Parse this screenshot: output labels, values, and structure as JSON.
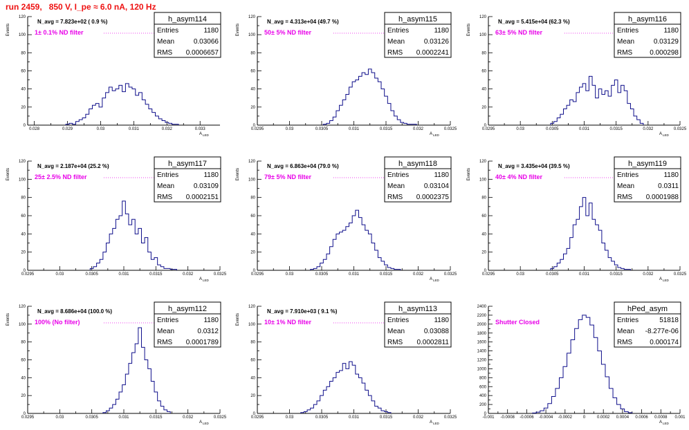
{
  "page_title": "run 2459,   850 V, I_pe ≈ 6.0 nA, 120 Hz",
  "colors": {
    "title": "#ee1111",
    "annotation": "#e800e8",
    "histogram": "#0d0d8a"
  },
  "chart_data": [
    {
      "type": "histogram",
      "name": "h_asym114",
      "stats": {
        "entries": "1180",
        "mean": "0.03066",
        "rms": "0.0006657"
      },
      "navg": "N_avg = 7.823e+02 ( 0.9 %)",
      "annotation": "1± 0.1% ND filter",
      "xlabel": "A_LED",
      "ylabel": "Events",
      "xlim": [
        0.0278,
        0.0336
      ],
      "ylim": [
        0,
        120
      ],
      "xticks": [
        "0.028",
        "0.029",
        "0.03",
        "0.031",
        "0.032",
        "0.033"
      ],
      "xtick_values": [
        0.028,
        0.029,
        0.03,
        0.031,
        0.032,
        0.033
      ],
      "yticks": [
        "0",
        "20",
        "40",
        "60",
        "80",
        "100",
        "120"
      ],
      "ytick_values": [
        0,
        20,
        40,
        60,
        80,
        100,
        120
      ],
      "bins": {
        "x": [
          0.029,
          0.0291,
          0.0292,
          0.0293,
          0.0294,
          0.0295,
          0.0296,
          0.0297,
          0.0298,
          0.0299,
          0.03,
          0.0301,
          0.0302,
          0.0303,
          0.0304,
          0.0305,
          0.0306,
          0.0307,
          0.0308,
          0.0309,
          0.031,
          0.0311,
          0.0312,
          0.0313,
          0.0314,
          0.0315,
          0.0316,
          0.0317,
          0.0318,
          0.0319,
          0.032,
          0.0321,
          0.0322,
          0.0323
        ],
        "y": [
          1,
          2,
          1,
          4,
          6,
          8,
          12,
          18,
          22,
          24,
          20,
          30,
          36,
          42,
          38,
          40,
          44,
          37,
          46,
          42,
          40,
          33,
          36,
          28,
          23,
          18,
          14,
          10,
          7,
          5,
          3,
          2,
          1,
          1
        ]
      }
    },
    {
      "type": "histogram",
      "name": "h_asym115",
      "stats": {
        "entries": "1180",
        "mean": "0.03126",
        "rms": "0.0002241"
      },
      "navg": "N_avg = 4.313e+04 (49.7 %)",
      "annotation": "50± 5% ND filter",
      "xlabel": "A_LED",
      "ylabel": "Events",
      "xlim": [
        0.0295,
        0.0325
      ],
      "ylim": [
        0,
        120
      ],
      "xticks": [
        "0.0295",
        "0.03",
        "0.0305",
        "0.031",
        "0.0315",
        "0.032",
        "0.0325"
      ],
      "xtick_values": [
        0.0295,
        0.03,
        0.0305,
        0.031,
        0.0315,
        0.032,
        0.0325
      ],
      "yticks": [
        "0",
        "20",
        "40",
        "60",
        "80",
        "100",
        "120"
      ],
      "ytick_values": [
        0,
        20,
        40,
        60,
        80,
        100,
        120
      ],
      "bins": {
        "x": [
          0.03055,
          0.0306,
          0.03065,
          0.0307,
          0.03075,
          0.0308,
          0.03085,
          0.0309,
          0.03095,
          0.031,
          0.03105,
          0.0311,
          0.03115,
          0.0312,
          0.03125,
          0.0313,
          0.03135,
          0.0314,
          0.03145,
          0.0315,
          0.03155,
          0.0316,
          0.03165,
          0.0317,
          0.03175,
          0.0318,
          0.03185,
          0.0319,
          0.03195
        ],
        "y": [
          1,
          2,
          5,
          9,
          16,
          22,
          28,
          34,
          42,
          48,
          50,
          54,
          58,
          56,
          62,
          58,
          52,
          48,
          40,
          32,
          24,
          16,
          10,
          6,
          3,
          2,
          1,
          1,
          1
        ]
      }
    },
    {
      "type": "histogram",
      "name": "h_asym116",
      "stats": {
        "entries": "1180",
        "mean": "0.03129",
        "rms": "0.000298"
      },
      "navg": "N_avg = 5.415e+04 (62.3 %)",
      "annotation": "63± 5% ND filter",
      "xlabel": "A_LED",
      "ylabel": "Events",
      "xlim": [
        0.0295,
        0.0325
      ],
      "ylim": [
        0,
        120
      ],
      "xticks": [
        "0.0295",
        "0.03",
        "0.0305",
        "0.031",
        "0.0315",
        "0.032",
        "0.0325"
      ],
      "xtick_values": [
        0.0295,
        0.03,
        0.0305,
        0.031,
        0.0315,
        0.032,
        0.0325
      ],
      "yticks": [
        "0",
        "20",
        "40",
        "60",
        "80",
        "100",
        "120"
      ],
      "ytick_values": [
        0,
        20,
        40,
        60,
        80,
        100,
        120
      ],
      "bins": {
        "x": [
          0.0305,
          0.03055,
          0.0306,
          0.03065,
          0.0307,
          0.03075,
          0.0308,
          0.03085,
          0.0309,
          0.03095,
          0.031,
          0.03105,
          0.0311,
          0.03115,
          0.0312,
          0.03125,
          0.0313,
          0.03135,
          0.0314,
          0.03145,
          0.0315,
          0.03155,
          0.0316,
          0.03165,
          0.0317,
          0.03175,
          0.0318,
          0.03185,
          0.0319
        ],
        "y": [
          2,
          4,
          8,
          12,
          18,
          22,
          28,
          26,
          36,
          42,
          46,
          38,
          54,
          44,
          30,
          40,
          34,
          38,
          32,
          44,
          50,
          36,
          44,
          38,
          24,
          18,
          10,
          6,
          2
        ]
      }
    },
    {
      "type": "histogram",
      "name": "h_asym117",
      "stats": {
        "entries": "1180",
        "mean": "0.03109",
        "rms": "0.0002151"
      },
      "navg": "N_avg = 2.187e+04 (25.2 %)",
      "annotation": "25± 2.5% ND filter",
      "xlabel": "A_LED",
      "ylabel": "Events",
      "xlim": [
        0.0295,
        0.0325
      ],
      "ylim": [
        0,
        120
      ],
      "xticks": [
        "0.0295",
        "0.03",
        "0.0305",
        "0.031",
        "0.0315",
        "0.032",
        "0.0325"
      ],
      "xtick_values": [
        0.0295,
        0.03,
        0.0305,
        0.031,
        0.0315,
        0.032,
        0.0325
      ],
      "yticks": [
        "0",
        "20",
        "40",
        "60",
        "80",
        "100",
        "120"
      ],
      "ytick_values": [
        0,
        20,
        40,
        60,
        80,
        100,
        120
      ],
      "bins": {
        "x": [
          0.0305,
          0.03055,
          0.0306,
          0.03065,
          0.0307,
          0.03075,
          0.0308,
          0.03085,
          0.0309,
          0.03095,
          0.031,
          0.03105,
          0.0311,
          0.03115,
          0.0312,
          0.03125,
          0.0313,
          0.03135,
          0.0314,
          0.03145,
          0.0315,
          0.03155,
          0.0316,
          0.03165,
          0.0317,
          0.03175,
          0.0318
        ],
        "y": [
          2,
          4,
          8,
          12,
          20,
          30,
          40,
          46,
          56,
          60,
          76,
          62,
          50,
          56,
          40,
          46,
          30,
          36,
          20,
          12,
          14,
          6,
          4,
          2,
          2,
          1,
          1
        ]
      }
    },
    {
      "type": "histogram",
      "name": "h_asym118",
      "stats": {
        "entries": "1180",
        "mean": "0.03104",
        "rms": "0.0002375"
      },
      "navg": "N_avg = 6.863e+04 (79.0 %)",
      "annotation": "79± 5% ND filter",
      "xlabel": "A_LED",
      "ylabel": "Events",
      "xlim": [
        0.0295,
        0.0325
      ],
      "ylim": [
        0,
        120
      ],
      "xticks": [
        "0.0295",
        "0.03",
        "0.0305",
        "0.031",
        "0.0315",
        "0.032",
        "0.0325"
      ],
      "xtick_values": [
        0.0295,
        0.03,
        0.0305,
        0.031,
        0.0315,
        0.032,
        0.0325
      ],
      "yticks": [
        "0",
        "20",
        "40",
        "60",
        "80",
        "100",
        "120"
      ],
      "ytick_values": [
        0,
        20,
        40,
        60,
        80,
        100,
        120
      ],
      "bins": {
        "x": [
          0.03035,
          0.0304,
          0.03045,
          0.0305,
          0.03055,
          0.0306,
          0.03065,
          0.0307,
          0.03075,
          0.0308,
          0.03085,
          0.0309,
          0.03095,
          0.031,
          0.03105,
          0.0311,
          0.03115,
          0.0312,
          0.03125,
          0.0313,
          0.03135,
          0.0314,
          0.03145,
          0.0315,
          0.03155,
          0.0316,
          0.03165,
          0.0317
        ],
        "y": [
          1,
          2,
          4,
          8,
          12,
          18,
          26,
          34,
          40,
          42,
          44,
          48,
          52,
          60,
          66,
          58,
          50,
          44,
          40,
          30,
          22,
          14,
          10,
          6,
          3,
          2,
          1,
          1
        ]
      }
    },
    {
      "type": "histogram",
      "name": "h_asym119",
      "stats": {
        "entries": "1180",
        "mean": "0.0311",
        "rms": "0.0001988"
      },
      "navg": "N_avg = 3.435e+04 (39.5 %)",
      "annotation": "40± 4% ND filter",
      "xlabel": "A_LED",
      "ylabel": "Events",
      "xlim": [
        0.0295,
        0.0325
      ],
      "ylim": [
        0,
        120
      ],
      "xticks": [
        "0.0295",
        "0.03",
        "0.0305",
        "0.031",
        "0.0315",
        "0.032",
        "0.0325"
      ],
      "xtick_values": [
        0.0295,
        0.03,
        0.0305,
        0.031,
        0.0315,
        0.032,
        0.0325
      ],
      "yticks": [
        "0",
        "20",
        "40",
        "60",
        "80",
        "100",
        "120"
      ],
      "ytick_values": [
        0,
        20,
        40,
        60,
        80,
        100,
        120
      ],
      "bins": {
        "x": [
          0.0305,
          0.03055,
          0.0306,
          0.03065,
          0.0307,
          0.03075,
          0.0308,
          0.03085,
          0.0309,
          0.03095,
          0.031,
          0.03105,
          0.0311,
          0.03115,
          0.0312,
          0.03125,
          0.0313,
          0.03135,
          0.0314,
          0.03145,
          0.0315,
          0.03155,
          0.0316,
          0.03165,
          0.0317
        ],
        "y": [
          2,
          4,
          8,
          12,
          18,
          24,
          36,
          50,
          56,
          70,
          80,
          60,
          74,
          56,
          50,
          44,
          30,
          22,
          14,
          10,
          6,
          3,
          2,
          1,
          1
        ]
      }
    },
    {
      "type": "histogram",
      "name": "h_asym112",
      "stats": {
        "entries": "1180",
        "mean": "0.0312",
        "rms": "0.0001789"
      },
      "navg": "N_avg = 8.686e+04 (100.0 %)",
      "annotation": "100% (No filter)",
      "xlabel": "A_LED",
      "ylabel": "Events",
      "xlim": [
        0.0295,
        0.0325
      ],
      "ylim": [
        0,
        120
      ],
      "xticks": [
        "0.0295",
        "0.03",
        "0.0305",
        "0.031",
        "0.0315",
        "0.032",
        "0.0325"
      ],
      "xtick_values": [
        0.0295,
        0.03,
        0.0305,
        0.031,
        0.0315,
        0.032,
        0.0325
      ],
      "yticks": [
        "0",
        "20",
        "40",
        "60",
        "80",
        "100",
        "120"
      ],
      "ytick_values": [
        0,
        20,
        40,
        60,
        80,
        100,
        120
      ],
      "bins": {
        "x": [
          0.0307,
          0.03075,
          0.0308,
          0.03085,
          0.0309,
          0.03095,
          0.031,
          0.03105,
          0.0311,
          0.03115,
          0.0312,
          0.03125,
          0.0313,
          0.03135,
          0.0314,
          0.03145,
          0.0315,
          0.03155,
          0.0316,
          0.03165,
          0.0317
        ],
        "y": [
          1,
          3,
          6,
          10,
          16,
          24,
          32,
          44,
          56,
          68,
          78,
          96,
          74,
          60,
          50,
          36,
          24,
          14,
          8,
          4,
          2
        ]
      }
    },
    {
      "type": "histogram",
      "name": "h_asym113",
      "stats": {
        "entries": "1180",
        "mean": "0.03088",
        "rms": "0.0002811"
      },
      "navg": "N_avg = 7.910e+03 ( 9.1 %)",
      "annotation": "10± 1% ND filter",
      "xlabel": "A_LED",
      "ylabel": "Events",
      "xlim": [
        0.0295,
        0.0325
      ],
      "ylim": [
        0,
        120
      ],
      "xticks": [
        "0.0295",
        "0.03",
        "0.0305",
        "0.031",
        "0.0315",
        "0.032",
        "0.0325"
      ],
      "xtick_values": [
        0.0295,
        0.03,
        0.0305,
        0.031,
        0.0315,
        0.032,
        0.0325
      ],
      "yticks": [
        "0",
        "20",
        "40",
        "60",
        "80",
        "100",
        "120"
      ],
      "ytick_values": [
        0,
        20,
        40,
        60,
        80,
        100,
        120
      ],
      "bins": {
        "x": [
          0.0302,
          0.03025,
          0.0303,
          0.03035,
          0.0304,
          0.03045,
          0.0305,
          0.03055,
          0.0306,
          0.03065,
          0.0307,
          0.03075,
          0.0308,
          0.03085,
          0.0309,
          0.03095,
          0.031,
          0.03105,
          0.0311,
          0.03115,
          0.0312,
          0.03125,
          0.0313,
          0.03135,
          0.0314,
          0.03145,
          0.0315,
          0.03155
        ],
        "y": [
          1,
          2,
          4,
          6,
          10,
          14,
          20,
          26,
          30,
          36,
          40,
          46,
          48,
          56,
          50,
          58,
          54,
          44,
          40,
          34,
          26,
          20,
          14,
          8,
          6,
          3,
          2,
          1
        ]
      }
    },
    {
      "type": "histogram",
      "name": "hPed_asym",
      "stats": {
        "entries": "51818",
        "mean": "-8.277e-06",
        "rms": "0.000174"
      },
      "navg": "",
      "annotation": "Shutter Closed",
      "xlabel": "A_LED",
      "ylabel": "",
      "xlim": [
        -0.001,
        0.001
      ],
      "ylim": [
        0,
        2400
      ],
      "xticks": [
        "-0.001",
        "-0.0008",
        "-0.0006",
        "-0.0004",
        "-0.0002",
        "0",
        "0.0002",
        "0.0004",
        "0.0006",
        "0.0008",
        "0.001"
      ],
      "xtick_values": [
        -0.001,
        -0.0008,
        -0.0006,
        -0.0004,
        -0.0002,
        0,
        0.0002,
        0.0004,
        0.0006,
        0.0008,
        0.001
      ],
      "yticks": [
        "0",
        "200",
        "400",
        "600",
        "800",
        "1000",
        "1200",
        "1400",
        "1600",
        "1800",
        "2000",
        "2200",
        "2400"
      ],
      "ytick_values": [
        0,
        200,
        400,
        600,
        800,
        1000,
        1200,
        1400,
        1600,
        1800,
        2000,
        2200,
        2400
      ],
      "bins": {
        "x": [
          -0.00052,
          -0.00048,
          -0.00044,
          -0.0004,
          -0.00036,
          -0.00032,
          -0.00028,
          -0.00024,
          -0.0002,
          -0.00016,
          -0.00012,
          -8e-05,
          -4e-05,
          0,
          4e-05,
          8e-05,
          0.00012,
          0.00016,
          0.0002,
          0.00024,
          0.00028,
          0.00032,
          0.00036,
          0.0004,
          0.00044,
          0.00048
        ],
        "y": [
          10,
          30,
          60,
          120,
          220,
          380,
          560,
          800,
          1050,
          1350,
          1650,
          1900,
          2100,
          2200,
          2150,
          1980,
          1700,
          1400,
          1100,
          820,
          560,
          350,
          200,
          100,
          40,
          15
        ]
      }
    }
  ]
}
